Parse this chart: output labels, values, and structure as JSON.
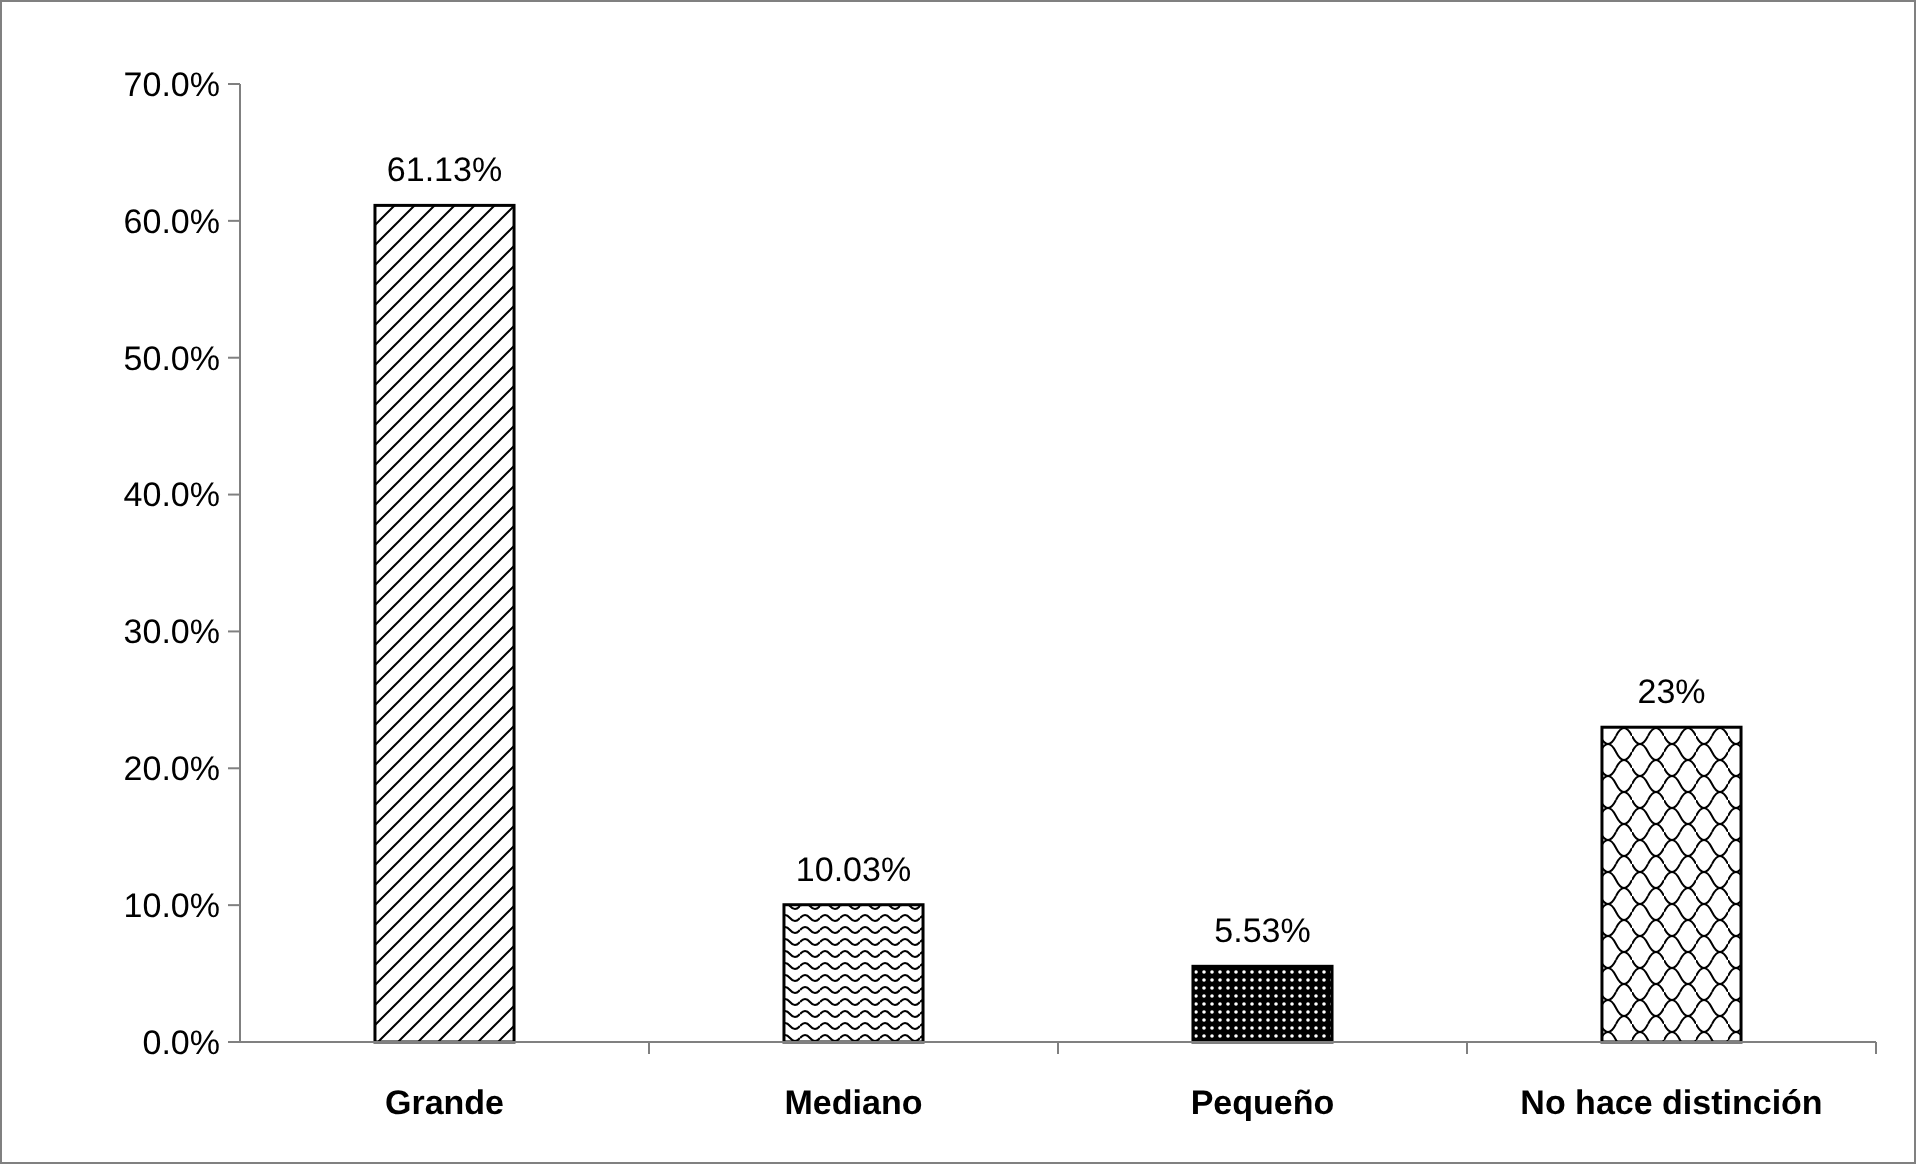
{
  "chart_data": {
    "type": "bar",
    "categories": [
      "Grande",
      "Mediano",
      "Pequeño",
      "No hace distinción"
    ],
    "values": [
      61.13,
      10.03,
      5.53,
      23
    ],
    "value_labels": [
      "61.13%",
      "10.03%",
      "5.53%",
      "23%"
    ],
    "color": "#000000",
    "ylim": [
      0,
      70
    ],
    "yticks": [
      {
        "value": 0,
        "label": "0.0%"
      },
      {
        "value": 10,
        "label": "10.0%"
      },
      {
        "value": 20,
        "label": "20.0%"
      },
      {
        "value": 30,
        "label": "30.0%"
      },
      {
        "value": 40,
        "label": "40.0%"
      },
      {
        "value": 50,
        "label": "50.0%"
      },
      {
        "value": 60,
        "label": "60.0%"
      },
      {
        "value": 70,
        "label": "70.0%"
      }
    ],
    "grid": false
  }
}
